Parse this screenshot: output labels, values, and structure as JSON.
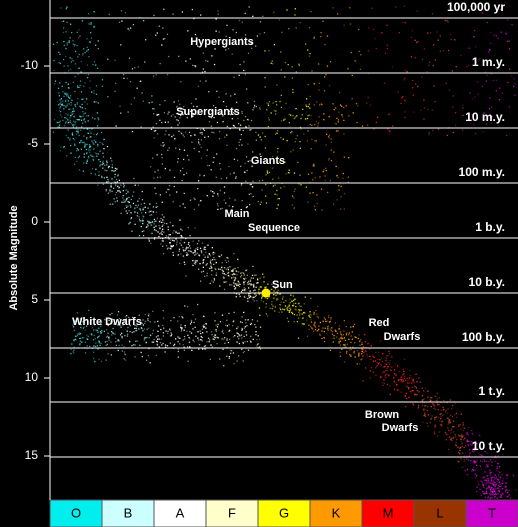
{
  "y_axis": {
    "label": "Absolute Magnitude",
    "ticks": [
      "-10",
      "-5",
      "0",
      "5",
      "10",
      "15"
    ]
  },
  "lifetimes": [
    "100,000 yr",
    "1 m.y.",
    "10 m.y.",
    "100 m.y.",
    "1 b.y.",
    "10 b.y.",
    "100 b.y.",
    "1 t.y.",
    "10 t.y."
  ],
  "regions": [
    "Hypergiants",
    "Supergiants",
    "Giants",
    "Main",
    "Sequence",
    "White Dwarfs",
    "Red",
    "Dwarfs",
    "Brown",
    "Dwarfs"
  ],
  "sun_label": "Sun",
  "spectral_classes": [
    "O",
    "B",
    "A",
    "F",
    "G",
    "K",
    "M",
    "L",
    "T"
  ]
}
